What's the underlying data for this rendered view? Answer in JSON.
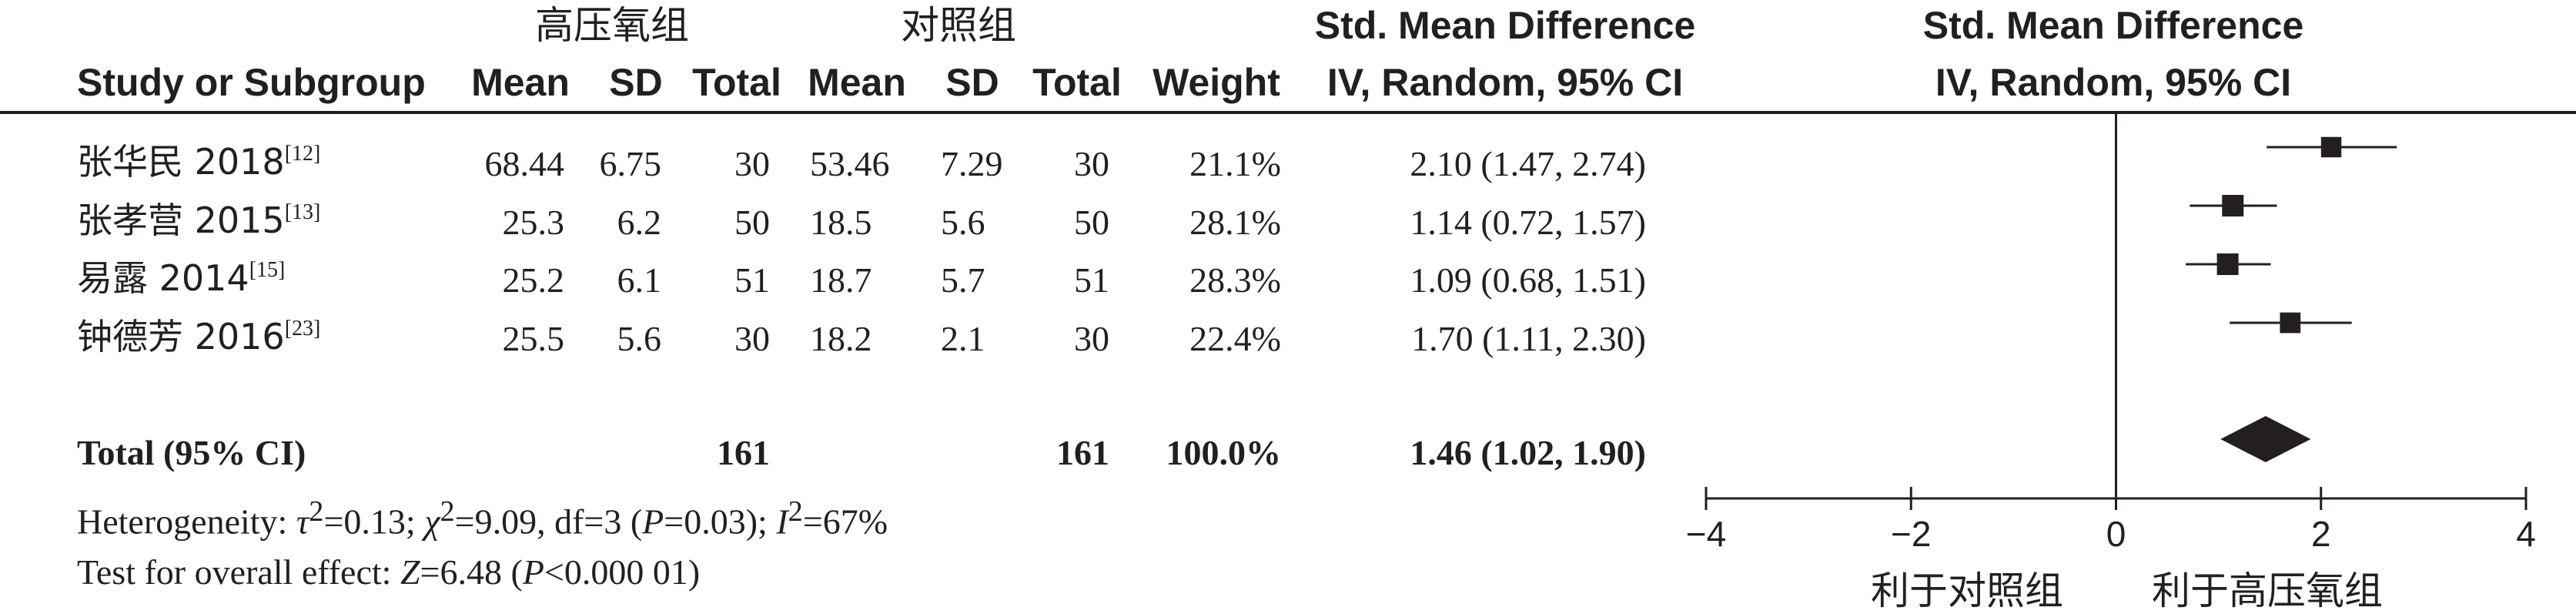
{
  "headers": {
    "group_experimental": "高压氧组",
    "group_control": "对照组",
    "smd_title": "Std. Mean Difference",
    "smd_method": "IV, Random, 95% CI",
    "plot_title": "Std. Mean Difference",
    "plot_method": "IV, Random, 95% CI",
    "study_col": "Study or Subgroup",
    "mean_exp": "Mean",
    "sd_exp": "SD",
    "total_exp": "Total",
    "mean_ctl": "Mean",
    "sd_ctl": "SD",
    "total_ctl": "Total",
    "weight": "Weight"
  },
  "studies": [
    {
      "name": "张华民 2018",
      "ref": "[12]",
      "mean_exp": "68.44",
      "sd_exp": "6.75",
      "total_exp": "30",
      "mean_ctl": "53.46",
      "sd_ctl": "7.29",
      "total_ctl": "30",
      "weight": "21.1%",
      "ci_text": "2.10 (1.47, 2.74)"
    },
    {
      "name": "张孝营 2015",
      "ref": "[13]",
      "mean_exp": "25.3",
      "sd_exp": "6.2",
      "total_exp": "50",
      "mean_ctl": "18.5",
      "sd_ctl": "5.6",
      "total_ctl": "50",
      "weight": "28.1%",
      "ci_text": "1.14 (0.72, 1.57)"
    },
    {
      "name": "易露 2014",
      "ref": "[15]",
      "mean_exp": "25.2",
      "sd_exp": "6.1",
      "total_exp": "51",
      "mean_ctl": "18.7",
      "sd_ctl": "5.7",
      "total_ctl": "51",
      "weight": "28.3%",
      "ci_text": "1.09 (0.68, 1.51)"
    },
    {
      "name": "钟德芳 2016",
      "ref": "[23]",
      "mean_exp": "25.5",
      "sd_exp": "5.6",
      "total_exp": "30",
      "mean_ctl": "18.2",
      "sd_ctl": "2.1",
      "total_ctl": "30",
      "weight": "22.4%",
      "ci_text": "1.70 (1.11, 2.30)"
    }
  ],
  "total": {
    "label": "Total (95% CI)",
    "total_exp": "161",
    "total_ctl": "161",
    "weight": "100.0%",
    "ci_text": "1.46 (1.02, 1.90)"
  },
  "footer": {
    "het_prefix": "Heterogeneity: ",
    "tau": "τ",
    "tau_val": "=0.13; ",
    "chi": "χ",
    "chi_val": "=9.09, df=3 (",
    "p1": "P",
    "p1_val": "=0.03); ",
    "i": "I",
    "i_val": "=67%",
    "sup2": "2",
    "overall_prefix": "Test for overall effect: ",
    "z": "Z",
    "z_val": "=6.48 (",
    "p2": "P",
    "p2_val": "<0.000 01)"
  },
  "favours": {
    "left": "利于对照组",
    "right": "利于高压氧组"
  },
  "chart_data": {
    "type": "forest",
    "title": "Std. Mean Difference",
    "subtitle": "IV, Random, 95% CI",
    "xlim": [
      -4,
      4
    ],
    "ticks": [
      -4,
      -2,
      0,
      2,
      4
    ],
    "tick_labels": [
      "−4",
      "−2",
      "0",
      "2",
      "4"
    ],
    "points": [
      {
        "study": "张华民 2018",
        "est": 2.1,
        "lo": 1.47,
        "hi": 2.74,
        "weight": 21.1
      },
      {
        "study": "张孝营 2015",
        "est": 1.14,
        "lo": 0.72,
        "hi": 1.57,
        "weight": 28.1
      },
      {
        "study": "易露 2014",
        "est": 1.09,
        "lo": 0.68,
        "hi": 1.51,
        "weight": 28.3
      },
      {
        "study": "钟德芳 2016",
        "est": 1.7,
        "lo": 1.11,
        "hi": 2.3,
        "weight": 22.4
      }
    ],
    "pooled": {
      "est": 1.46,
      "lo": 1.02,
      "hi": 1.9
    },
    "colors": {
      "ink": "#231f20"
    }
  }
}
